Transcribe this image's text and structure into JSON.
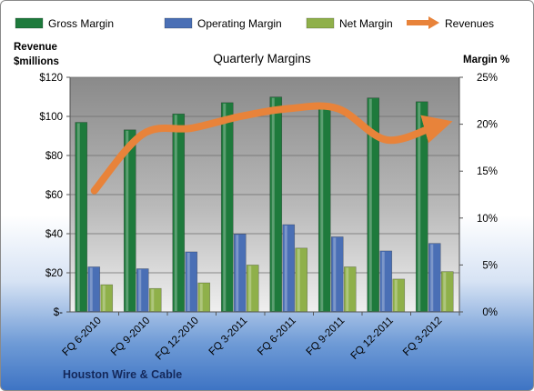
{
  "chart_data": {
    "type": "bar",
    "title": "Quarterly Margins",
    "footer": "Houston Wire & Cable",
    "y_left_title": [
      "Revenue",
      "$millions"
    ],
    "y_right_title": "Margin %",
    "categories": [
      "FQ 6-2010",
      "FQ 9-2010",
      "FQ 12-2010",
      "FQ 3-2011",
      "FQ 6-2011",
      "FQ 9-2011",
      "FQ 12-2011",
      "FQ 3-2012"
    ],
    "y_left_ticks": [
      "$-",
      "$20",
      "$40",
      "$60",
      "$80",
      "$100",
      "$120"
    ],
    "y_right_ticks": [
      "0%",
      "5%",
      "10%",
      "15%",
      "20%",
      "25%"
    ],
    "ylim_left": [
      0,
      120
    ],
    "ylim_right": [
      0,
      25
    ],
    "series": [
      {
        "name": "Gross Margin",
        "axis": "right",
        "color": "#1e7a3c",
        "values": [
          20.2,
          19.4,
          21.1,
          22.3,
          22.9,
          21.7,
          22.8,
          22.4
        ]
      },
      {
        "name": "Operating Margin",
        "axis": "right",
        "color": "#4a6fb5",
        "values": [
          4.8,
          4.6,
          6.4,
          8.3,
          9.3,
          8.0,
          6.5,
          7.3
        ]
      },
      {
        "name": "Net Margin",
        "axis": "right",
        "color": "#8fb04a",
        "values": [
          2.9,
          2.5,
          3.1,
          5.0,
          6.8,
          4.8,
          3.5,
          4.3
        ]
      },
      {
        "name": "Revenues",
        "axis": "left",
        "type": "line",
        "color": "#e8833a",
        "values": [
          62,
          91,
          94,
          100,
          104,
          104,
          88,
          95
        ]
      }
    ],
    "grid": true,
    "legend_position": "top"
  }
}
